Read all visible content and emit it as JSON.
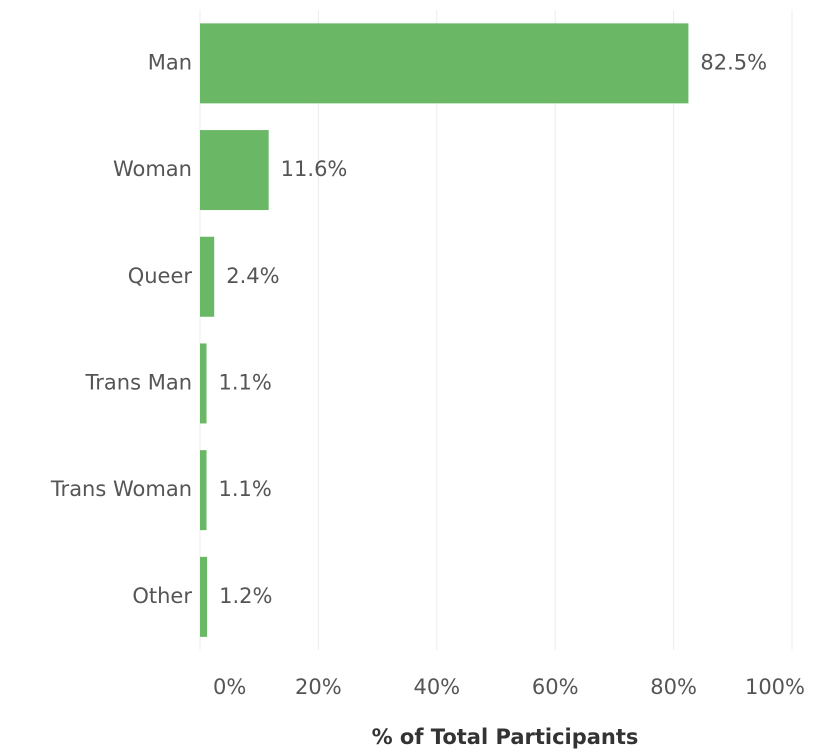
{
  "chart_data": {
    "type": "bar",
    "orientation": "horizontal",
    "categories": [
      "Man",
      "Woman",
      "Queer",
      "Trans Man",
      "Trans Woman",
      "Other"
    ],
    "values": [
      82.5,
      11.6,
      2.4,
      1.1,
      1.1,
      1.2
    ],
    "value_labels": [
      "82.5%",
      "11.6%",
      "2.4%",
      "1.1%",
      "1.1%",
      "1.2%"
    ],
    "color": "#6ab866",
    "xlim": [
      0,
      100
    ],
    "xticks": [
      {
        "value": 0,
        "label": "0%"
      },
      {
        "value": 20,
        "label": "20%"
      },
      {
        "value": 40,
        "label": "40%"
      },
      {
        "value": 60,
        "label": "60%"
      },
      {
        "value": 80,
        "label": "80%"
      },
      {
        "value": 100,
        "label": "100%"
      }
    ],
    "xlabel": "% of Total Participants",
    "grid": true
  }
}
